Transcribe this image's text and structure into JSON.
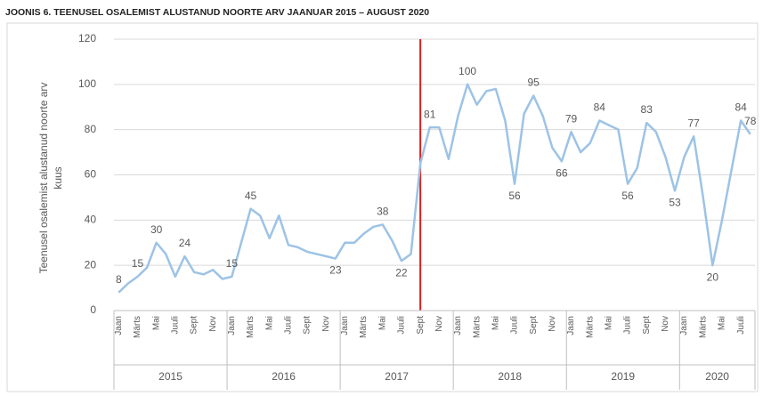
{
  "chart_data": {
    "type": "line",
    "title": "JOONIS 6. TEENUSEL OSALEMIST ALUSTANUD NOORTE ARV JAANUAR 2015 – AUGUST 2020",
    "y_label": [
      "Teenusel osalemist alustanud noorte arv",
      "kuus"
    ],
    "categories": [
      "Jaan",
      null,
      "Märts",
      null,
      "Mai",
      null,
      "Juuli",
      null,
      "Sept",
      null,
      "Nov",
      null,
      "Jaan",
      null,
      "Märts",
      null,
      "Mai",
      null,
      "Juuli",
      null,
      "Sept",
      null,
      "Nov",
      null,
      "Jaan",
      null,
      "Märts",
      null,
      "Mai",
      null,
      "Juuli",
      null,
      "Sept",
      null,
      "Nov",
      null,
      "Jaan",
      null,
      "Märts",
      null,
      "Mai",
      null,
      "Juuli",
      null,
      "Sept",
      null,
      "Nov",
      null,
      "Jaan",
      null,
      "Märts",
      null,
      "Mai",
      null,
      "Juuli",
      null,
      "Sept",
      null,
      "Nov",
      null,
      "Jaan",
      null,
      "Märts",
      null,
      "Mai",
      null,
      "Juuli",
      null
    ],
    "year_groups": [
      {
        "label": "2015",
        "count": 12
      },
      {
        "label": "2016",
        "count": 12
      },
      {
        "label": "2017",
        "count": 12
      },
      {
        "label": "2018",
        "count": 12
      },
      {
        "label": "2019",
        "count": 12
      },
      {
        "label": "2020",
        "count": 8
      }
    ],
    "series": [
      {
        "name": "Noorte arv",
        "color": "#9dc3e6",
        "values": [
          8,
          12,
          15,
          19,
          30,
          25,
          15,
          24,
          17,
          16,
          18,
          14,
          15,
          30,
          45,
          42,
          32,
          42,
          29,
          28,
          26,
          25,
          24,
          23,
          30,
          30,
          34,
          37,
          38,
          31,
          22,
          25,
          65,
          81,
          81,
          67,
          86,
          100,
          91,
          97,
          98,
          84,
          56,
          87,
          95,
          86,
          72,
          66,
          79,
          70,
          74,
          84,
          82,
          80,
          56,
          63,
          83,
          79,
          68,
          53,
          68,
          77,
          50,
          20,
          40,
          62,
          84,
          78
        ],
        "value_labels": [
          "8",
          null,
          "15",
          null,
          "30",
          null,
          null,
          "24",
          null,
          null,
          null,
          null,
          "15",
          null,
          "45",
          null,
          null,
          null,
          null,
          null,
          null,
          null,
          null,
          "23",
          null,
          null,
          null,
          null,
          "38",
          null,
          "22",
          null,
          null,
          "81",
          null,
          null,
          null,
          "100",
          null,
          null,
          null,
          null,
          "56",
          null,
          "95",
          null,
          null,
          "66",
          "79",
          null,
          null,
          "84",
          null,
          null,
          "56",
          null,
          "83",
          null,
          null,
          "53",
          null,
          "77",
          null,
          "20",
          null,
          null,
          "84",
          "78"
        ]
      }
    ],
    "ylim": [
      0,
      120
    ],
    "yticks": [
      0,
      20,
      40,
      60,
      80,
      100,
      120
    ],
    "grid": true
  }
}
